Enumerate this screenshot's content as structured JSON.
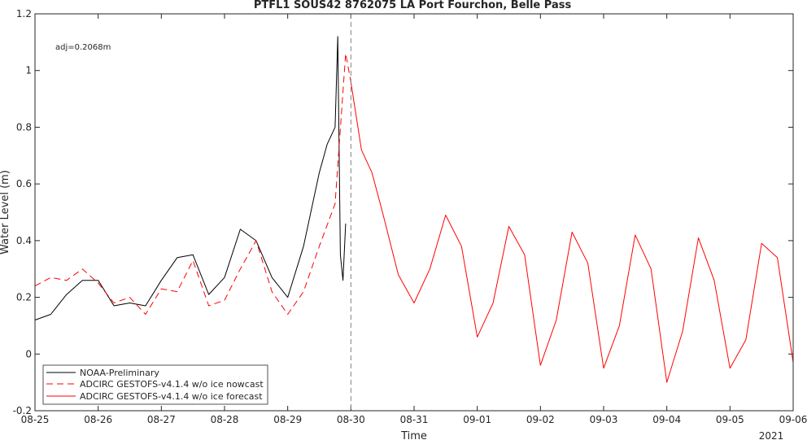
{
  "chart_data": {
    "type": "line",
    "title": "PTFL1 SOUS42 8762075 LA Port Fourchon, Belle Pass",
    "xlabel": "Time",
    "ylabel": "Water Level (m)",
    "year_label": "2021",
    "annotation": "adj=0.2068m",
    "ylim": [
      -0.2,
      1.2
    ],
    "xlim": [
      "08-25",
      "09-06"
    ],
    "x_ticks": [
      "08-25",
      "08-26",
      "08-27",
      "08-28",
      "08-29",
      "08-30",
      "08-31",
      "09-01",
      "09-02",
      "09-03",
      "09-04",
      "09-05",
      "09-06"
    ],
    "y_ticks": [
      "-0.2",
      "0",
      "0.2",
      "0.4",
      "0.6",
      "0.8",
      "1",
      "1.2"
    ],
    "grid": false,
    "legend_position": "bottom-left",
    "nowcast_end": "08-30",
    "series": [
      {
        "name": "NOAA-Preliminary",
        "color": "#000000",
        "style": "solid",
        "x": [
          "08-25 00:00",
          "08-25 06:00",
          "08-25 12:00",
          "08-25 18:00",
          "08-26 00:00",
          "08-26 06:00",
          "08-26 12:00",
          "08-26 18:00",
          "08-27 00:00",
          "08-27 06:00",
          "08-27 12:00",
          "08-27 18:00",
          "08-28 00:00",
          "08-28 06:00",
          "08-28 12:00",
          "08-28 18:00",
          "08-29 00:00",
          "08-29 06:00",
          "08-29 12:00",
          "08-29 15:00",
          "08-29 18:00",
          "08-29 19:00",
          "08-29 20:00",
          "08-29 21:00",
          "08-29 22:00"
        ],
        "y": [
          0.12,
          0.14,
          0.21,
          0.26,
          0.26,
          0.17,
          0.18,
          0.17,
          0.26,
          0.34,
          0.35,
          0.21,
          0.27,
          0.44,
          0.4,
          0.27,
          0.2,
          0.38,
          0.64,
          0.74,
          0.8,
          1.12,
          0.35,
          0.26,
          0.46
        ]
      },
      {
        "name": "ADCIRC GESTOFS-v4.1.4 w/o ice nowcast",
        "color": "#ff0000",
        "style": "dashed",
        "x": [
          "08-25 00:00",
          "08-25 06:00",
          "08-25 12:00",
          "08-25 18:00",
          "08-26 00:00",
          "08-26 06:00",
          "08-26 12:00",
          "08-26 18:00",
          "08-27 00:00",
          "08-27 06:00",
          "08-27 12:00",
          "08-27 18:00",
          "08-28 00:00",
          "08-28 06:00",
          "08-28 12:00",
          "08-28 18:00",
          "08-29 00:00",
          "08-29 06:00",
          "08-29 12:00",
          "08-29 18:00",
          "08-29 22:00",
          "08-30 00:00"
        ],
        "y": [
          0.24,
          0.27,
          0.26,
          0.3,
          0.25,
          0.18,
          0.2,
          0.14,
          0.23,
          0.22,
          0.33,
          0.17,
          0.19,
          0.3,
          0.4,
          0.22,
          0.14,
          0.22,
          0.38,
          0.53,
          1.06,
          0.96
        ]
      },
      {
        "name": "ADCIRC GESTOFS-v4.1.4 w/o ice forecast",
        "color": "#ff0000",
        "style": "solid",
        "x": [
          "08-30 00:00",
          "08-30 04:00",
          "08-30 08:00",
          "08-30 12:00",
          "08-30 18:00",
          "08-31 00:00",
          "08-31 06:00",
          "08-31 12:00",
          "08-31 18:00",
          "09-01 00:00",
          "09-01 06:00",
          "09-01 12:00",
          "09-01 18:00",
          "09-02 00:00",
          "09-02 06:00",
          "09-02 12:00",
          "09-02 18:00",
          "09-03 00:00",
          "09-03 06:00",
          "09-03 12:00",
          "09-03 18:00",
          "09-04 00:00",
          "09-04 06:00",
          "09-04 12:00",
          "09-04 18:00",
          "09-05 00:00",
          "09-05 06:00",
          "09-05 12:00",
          "09-05 18:00",
          "09-06 00:00"
        ],
        "y": [
          0.96,
          0.72,
          0.64,
          0.5,
          0.28,
          0.18,
          0.3,
          0.49,
          0.38,
          0.06,
          0.18,
          0.45,
          0.35,
          -0.04,
          0.12,
          0.43,
          0.32,
          -0.05,
          0.1,
          0.42,
          0.3,
          -0.1,
          0.08,
          0.41,
          0.26,
          -0.05,
          0.05,
          0.39,
          0.34,
          -0.03
        ]
      }
    ]
  }
}
